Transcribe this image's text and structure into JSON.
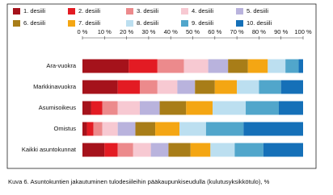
{
  "chart_data": {
    "type": "stacked-bar-horizontal",
    "caption": "Kuva 6. Asuntokuntien jakautuminen tulodesiileihin pääkaupunkiseudulla (kulutusyksikkötulo), %",
    "categories": [
      "Ara-vuokra",
      "Markkinavuokra",
      "Asumisoikeus",
      "Omistus",
      "Kaikki asuntokunnat"
    ],
    "series": [
      {
        "name": "1. desiili",
        "color": "#a5121b",
        "values": [
          21,
          16,
          4,
          2,
          10
        ]
      },
      {
        "name": "2. desiili",
        "color": "#e31b23",
        "values": [
          13,
          10,
          5,
          3,
          6
        ]
      },
      {
        "name": "3. desiili",
        "color": "#ec8a8c",
        "values": [
          12,
          8,
          7,
          4,
          7
        ]
      },
      {
        "name": "4. desiili",
        "color": "#f7c9d2",
        "values": [
          11,
          9,
          10,
          7,
          8
        ]
      },
      {
        "name": "5. desiili",
        "color": "#b9b3dd",
        "values": [
          9,
          8,
          9,
          8,
          8
        ]
      },
      {
        "name": "6. desiili",
        "color": "#a87d18",
        "values": [
          9,
          9,
          12,
          9,
          10
        ]
      },
      {
        "name": "7. desiili",
        "color": "#f4a613",
        "values": [
          9,
          10,
          12,
          11,
          9
        ]
      },
      {
        "name": "8. desiili",
        "color": "#bcdff0",
        "values": [
          8,
          10,
          15,
          12,
          11
        ]
      },
      {
        "name": "9. desiili",
        "color": "#51a6cb",
        "values": [
          6,
          10,
          15,
          17,
          13
        ]
      },
      {
        "name": "10. desiili",
        "color": "#1570b8",
        "values": [
          2,
          10,
          11,
          27,
          18
        ]
      }
    ],
    "xlim": [
      0,
      100
    ],
    "xticks": [
      {
        "value": 0,
        "label": "0 %"
      },
      {
        "value": 10,
        "label": "10 %"
      },
      {
        "value": 20,
        "label": "20 %"
      },
      {
        "value": 30,
        "label": "30 %"
      },
      {
        "value": 40,
        "label": "40 %"
      },
      {
        "value": 50,
        "label": "50 %"
      },
      {
        "value": 60,
        "label": "60 %"
      },
      {
        "value": 70,
        "label": "70 %"
      },
      {
        "value": 80,
        "label": "80 %"
      },
      {
        "value": 90,
        "label": "90 %"
      },
      {
        "value": 100,
        "label": "100 %"
      }
    ]
  }
}
